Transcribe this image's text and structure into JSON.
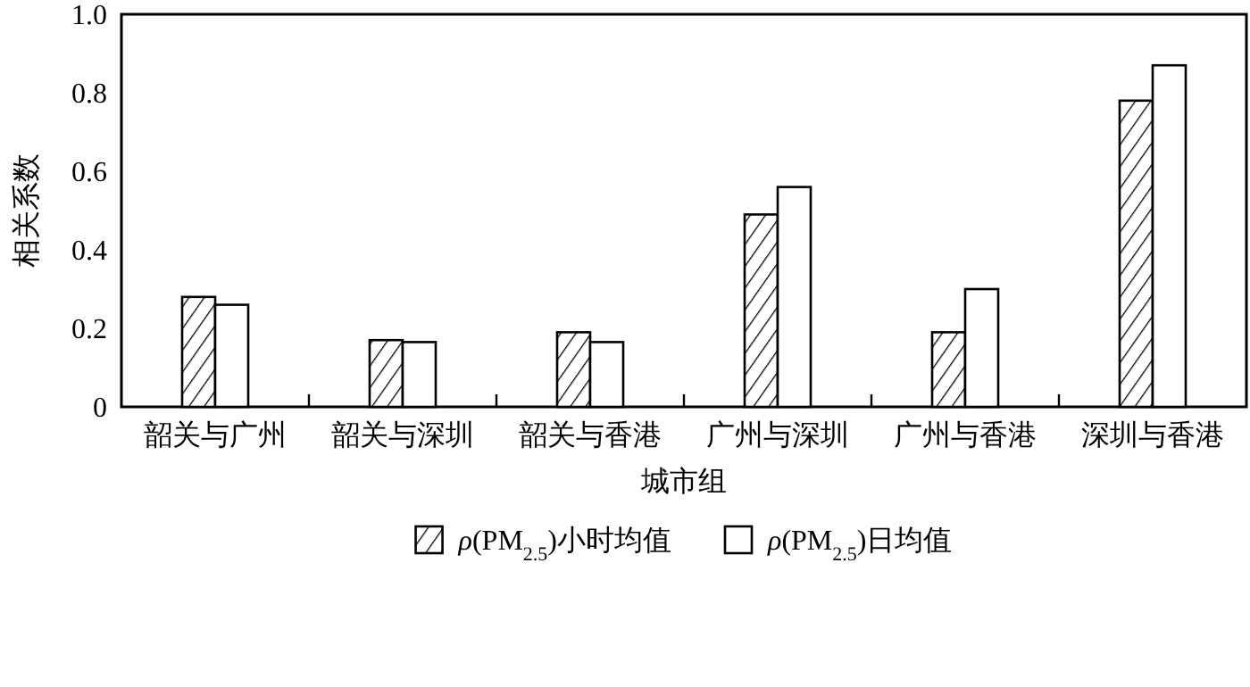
{
  "chart_data": {
    "type": "bar",
    "xlabel": "城市组",
    "ylabel": "相关系数",
    "categories": [
      "韶关与广州",
      "韶关与深圳",
      "韶关与香港",
      "广州与深圳",
      "广州与香港",
      "深圳与香港"
    ],
    "series": [
      {
        "name": "*ρ*(PM$_{2.5}$)小时均值",
        "color": "#000000",
        "values": [
          0.28,
          0.17,
          0.19,
          0.49,
          0.19,
          0.78
        ]
      },
      {
        "name": "*ρ*(PM$_{2.5}$)日均值",
        "color": "#ffffff",
        "values": [
          0.26,
          0.165,
          0.165,
          0.56,
          0.3,
          0.87
        ]
      }
    ],
    "ylim": [
      0,
      1.0
    ],
    "yticks": [
      0,
      {
        "value": 0.2,
        "label": "0.2"
      },
      {
        "value": 0.4,
        "label": "0.4"
      },
      {
        "value": 0.6,
        "label": "0.6"
      },
      {
        "value": 0.8,
        "label": "0.8"
      },
      {
        "value": 1.0,
        "label": "1.0"
      }
    ],
    "grid": false,
    "legend": "bottom"
  }
}
